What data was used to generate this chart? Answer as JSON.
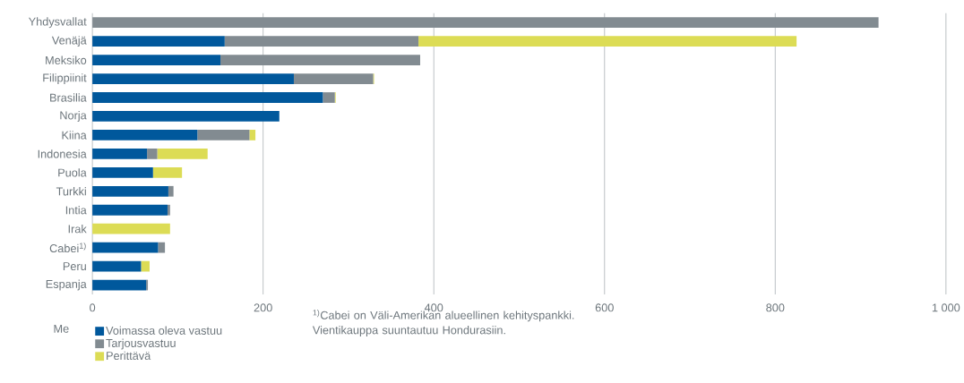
{
  "chart_data": {
    "type": "bar",
    "orientation": "horizontal",
    "stacked": true,
    "categories": [
      "Yhdysvallat",
      "Venäjä",
      "Meksiko",
      "Filippiinit",
      "Brasilia",
      "Norja",
      "Kiina",
      "Indonesia",
      "Puola",
      "Turkki",
      "Intia",
      "Irak",
      "Cabei$^{1)}$",
      "Peru",
      "Espanja"
    ],
    "series": [
      {
        "name": "Voimassa oleva vastuu",
        "color": "#00589c",
        "values": [
          0,
          155,
          150,
          236,
          270,
          219,
          123,
          64,
          71,
          89,
          88,
          0,
          77,
          57,
          63
        ]
      },
      {
        "name": "Tarjousvastuu",
        "color": "#828b91",
        "values": [
          921,
          227,
          234,
          93,
          14,
          0,
          61,
          12,
          0,
          6,
          3,
          0,
          8,
          0,
          2
        ]
      },
      {
        "name": "Perittävä",
        "color": "#dcdc55",
        "values": [
          0,
          443,
          0,
          1,
          1,
          0,
          7,
          59,
          34,
          0,
          0,
          91,
          0,
          10,
          0
        ]
      }
    ],
    "xlabel": "Me",
    "xlim": [
      0,
      1000
    ],
    "xticks": [
      0,
      200,
      400,
      600,
      800,
      {
        "value": 1000,
        "label": "1 000"
      }
    ],
    "grid": "x",
    "legend": "bottom left",
    "annotations": [
      "$^{1)}$Cabei on Väli-Amerikan alueellinen kehityspankki. Vientikauppa suuntautuu Hondurasiin."
    ]
  }
}
